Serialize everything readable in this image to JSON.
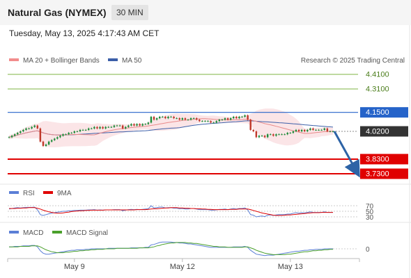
{
  "header": {
    "title": "Natural Gas (NYMEX)",
    "timeframe": "30 MIN"
  },
  "timestamp": "Tuesday, May 13, 2025 4:17:43 AM CET",
  "copyright": "Research © 2025 Trading Central",
  "legend": {
    "ma20": "MA 20 + Bollinger Bands",
    "ma50": "MA 50",
    "rsi": "RSI",
    "rsi_ma": "9MA",
    "macd": "MACD",
    "macd_signal": "MACD Signal"
  },
  "colors": {
    "up_candle": "#1e8c3a",
    "down_candle": "#c0392b",
    "bollinger": "#fadadd",
    "ma20": "#e88a8a",
    "ma50": "#3b5ea8",
    "resistance": "#7cb342",
    "support": "#e00000",
    "pivot": "#2563c9",
    "last_price": "#333333",
    "arrow": "#2d63a6"
  },
  "chart_data": [
    {
      "type": "candlestick",
      "title": "Natural Gas (NYMEX)",
      "x_ticks": [
        "May 9",
        "May 12",
        "May 13"
      ],
      "ylim": [
        3.7,
        4.45
      ],
      "levels": [
        {
          "kind": "resistance",
          "value": 4.41,
          "label": "4.4100"
        },
        {
          "kind": "resistance",
          "value": 4.31,
          "label": "4.3100"
        },
        {
          "kind": "pivot",
          "value": 4.15,
          "label": "4.1500"
        },
        {
          "kind": "last",
          "value": 4.02,
          "label": "4.0200"
        },
        {
          "kind": "support",
          "value": 3.83,
          "label": "3.8300"
        },
        {
          "kind": "support",
          "value": 3.73,
          "label": "3.7300"
        }
      ],
      "forecast": {
        "from": 4.02,
        "to": 3.73,
        "direction": "down"
      },
      "close_series": [
        3.98,
        3.99,
        4.0,
        4.01,
        4.02,
        4.03,
        4.04,
        4.04,
        4.05,
        4.06,
        4.04,
        3.95,
        3.92,
        3.93,
        3.95,
        3.96,
        3.97,
        3.98,
        3.99,
        4.0,
        4.0,
        4.01,
        4.01,
        4.02,
        4.02,
        4.03,
        4.03,
        4.03,
        4.04,
        4.04,
        4.05,
        4.04,
        4.05,
        4.04,
        4.05,
        4.05,
        4.05,
        4.06,
        4.06,
        4.06,
        4.04,
        4.05,
        4.06,
        4.07,
        4.06,
        4.07,
        4.06,
        4.07,
        4.07,
        4.08,
        4.12,
        4.1,
        4.11,
        4.12,
        4.12,
        4.11,
        4.12,
        4.12,
        4.11,
        4.11,
        4.1,
        4.11,
        4.1,
        4.1,
        4.11,
        4.11,
        4.1,
        4.09,
        4.09,
        4.09,
        4.09,
        4.08,
        4.08,
        4.09,
        4.1,
        4.1,
        4.11,
        4.1,
        4.11,
        4.12,
        4.11,
        4.12,
        4.12,
        4.13,
        4.1,
        4.03,
        4.02,
        3.98,
        3.99,
        3.99,
        3.98,
        4.0,
        4.0,
        3.99,
        4.0,
        4.0,
        4.0,
        4.0,
        4.01,
        4.01,
        4.02,
        4.03,
        4.02,
        4.03,
        4.02,
        4.03,
        4.04,
        4.03,
        4.03,
        4.03,
        4.03,
        4.04,
        4.02,
        4.02,
        4.02
      ]
    },
    {
      "type": "line",
      "title": "RSI",
      "levels": [
        70,
        50,
        30
      ],
      "series": [
        {
          "name": "RSI",
          "values": [
            58,
            60,
            62,
            63,
            62,
            63,
            64,
            64,
            64,
            65,
            55,
            38,
            35,
            38,
            41,
            43,
            45,
            47,
            48,
            50,
            50,
            52,
            52,
            53,
            53,
            54,
            54,
            54,
            55,
            55,
            56,
            54,
            55,
            54,
            55,
            55,
            55,
            56,
            56,
            56,
            52,
            54,
            56,
            57,
            56,
            57,
            56,
            57,
            58,
            59,
            70,
            62,
            63,
            65,
            65,
            62,
            63,
            63,
            61,
            61,
            59,
            60,
            58,
            58,
            60,
            60,
            58,
            56,
            56,
            56,
            56,
            54,
            54,
            55,
            57,
            57,
            58,
            56,
            58,
            60,
            58,
            60,
            60,
            62,
            55,
            38,
            36,
            30,
            32,
            33,
            31,
            36,
            37,
            35,
            37,
            38,
            38,
            38,
            40,
            40,
            43,
            45,
            43,
            45,
            44,
            46,
            48,
            46,
            46,
            46,
            46,
            48,
            46,
            46,
            46
          ]
        },
        {
          "name": "9MA",
          "values": [
            60,
            60,
            60,
            61,
            61,
            62,
            62,
            63,
            63,
            63,
            61,
            58,
            54,
            51,
            48,
            46,
            44,
            43,
            43,
            44,
            46,
            47,
            49,
            50,
            51,
            52,
            52,
            53,
            53,
            54,
            54,
            54,
            54,
            54,
            55,
            55,
            55,
            55,
            55,
            55,
            55,
            55,
            55,
            55,
            55,
            56,
            56,
            56,
            56,
            57,
            58,
            59,
            59,
            60,
            61,
            62,
            62,
            63,
            63,
            63,
            62,
            62,
            61,
            61,
            60,
            60,
            59,
            59,
            58,
            58,
            57,
            57,
            56,
            56,
            56,
            56,
            56,
            56,
            57,
            57,
            57,
            58,
            58,
            58,
            58,
            56,
            53,
            50,
            47,
            44,
            42,
            40,
            38,
            36,
            35,
            35,
            35,
            36,
            37,
            37,
            38,
            39,
            40,
            41,
            42,
            43,
            44,
            45,
            45,
            45,
            46,
            46,
            46,
            46,
            46
          ]
        }
      ]
    },
    {
      "type": "line",
      "title": "MACD",
      "levels": [
        0
      ],
      "series": [
        {
          "name": "MACD",
          "values": [
            0.004,
            0.004,
            0.005,
            0.005,
            0.005,
            0.006,
            0.006,
            0.006,
            0.007,
            0.007,
            0.004,
            -0.004,
            -0.009,
            -0.011,
            -0.011,
            -0.01,
            -0.009,
            -0.008,
            -0.007,
            -0.006,
            -0.005,
            -0.004,
            -0.003,
            -0.003,
            -0.002,
            -0.002,
            -0.002,
            -0.001,
            -0.001,
            0.0,
            0.0,
            0.0,
            0.0,
            0.0,
            0.0,
            0.001,
            0.001,
            0.001,
            0.001,
            0.001,
            0.001,
            0.001,
            0.001,
            0.002,
            0.002,
            0.002,
            0.002,
            0.002,
            0.003,
            0.003,
            0.008,
            0.009,
            0.011,
            0.013,
            0.014,
            0.014,
            0.014,
            0.014,
            0.013,
            0.013,
            0.012,
            0.012,
            0.011,
            0.01,
            0.01,
            0.009,
            0.008,
            0.007,
            0.006,
            0.005,
            0.004,
            0.003,
            0.003,
            0.003,
            0.003,
            0.003,
            0.003,
            0.003,
            0.003,
            0.004,
            0.004,
            0.004,
            0.004,
            0.005,
            0.003,
            -0.003,
            -0.007,
            -0.011,
            -0.012,
            -0.013,
            -0.014,
            -0.013,
            -0.013,
            -0.013,
            -0.012,
            -0.011,
            -0.01,
            -0.009,
            -0.008,
            -0.007,
            -0.006,
            -0.005,
            -0.005,
            -0.004,
            -0.003,
            -0.003,
            -0.002,
            -0.002,
            -0.001,
            -0.001,
            -0.001,
            0.0,
            0.0,
            0.0,
            0.0
          ]
        },
        {
          "name": "MACD Signal",
          "values": [
            0.004,
            0.004,
            0.004,
            0.004,
            0.005,
            0.005,
            0.005,
            0.005,
            0.006,
            0.006,
            0.006,
            0.004,
            0.001,
            -0.002,
            -0.004,
            -0.006,
            -0.007,
            -0.008,
            -0.008,
            -0.008,
            -0.007,
            -0.007,
            -0.006,
            -0.005,
            -0.005,
            -0.004,
            -0.004,
            -0.003,
            -0.003,
            -0.002,
            -0.002,
            -0.001,
            -0.001,
            -0.001,
            0.0,
            0.0,
            0.0,
            0.0,
            0.001,
            0.001,
            0.001,
            0.001,
            0.001,
            0.001,
            0.001,
            0.001,
            0.002,
            0.002,
            0.002,
            0.002,
            0.003,
            0.004,
            0.006,
            0.007,
            0.009,
            0.01,
            0.011,
            0.012,
            0.012,
            0.013,
            0.013,
            0.013,
            0.013,
            0.012,
            0.012,
            0.011,
            0.011,
            0.01,
            0.009,
            0.008,
            0.007,
            0.006,
            0.005,
            0.005,
            0.004,
            0.004,
            0.004,
            0.003,
            0.003,
            0.003,
            0.003,
            0.003,
            0.003,
            0.004,
            0.004,
            0.002,
            0.0,
            -0.003,
            -0.005,
            -0.007,
            -0.009,
            -0.01,
            -0.011,
            -0.012,
            -0.012,
            -0.012,
            -0.012,
            -0.012,
            -0.011,
            -0.011,
            -0.01,
            -0.009,
            -0.008,
            -0.007,
            -0.006,
            -0.006,
            -0.005,
            -0.004,
            -0.004,
            -0.003,
            -0.003,
            -0.002,
            -0.002,
            -0.001,
            -0.001
          ]
        }
      ]
    }
  ]
}
